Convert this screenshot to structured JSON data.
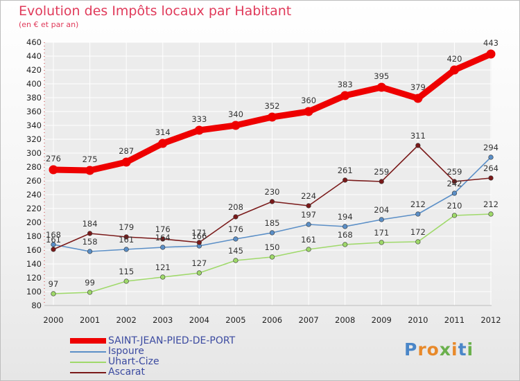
{
  "title": "Evolution des Impôts locaux par Habitant",
  "subtitle": "(en € et par an)",
  "logo": {
    "letters": [
      "P",
      "r",
      "o",
      "x",
      "i",
      "t",
      "i"
    ],
    "colors": [
      "#4a86c8",
      "#e8892a",
      "#e8892a",
      "#6ab04c",
      "#e8892a",
      "#4a86c8",
      "#6ab04c"
    ]
  },
  "chart_data": {
    "type": "line",
    "x": [
      "2000",
      "2001",
      "2002",
      "2003",
      "2004",
      "2005",
      "2006",
      "2007",
      "2008",
      "2009",
      "2010",
      "2011",
      "2012"
    ],
    "ylim": [
      80,
      460
    ],
    "yticks": [
      80,
      100,
      120,
      140,
      160,
      180,
      200,
      220,
      240,
      260,
      280,
      300,
      320,
      340,
      360,
      380,
      400,
      420,
      440,
      460
    ],
    "series": [
      {
        "name": "SAINT-JEAN-PIED-DE-PORT",
        "color": "#ee0000",
        "values": [
          276,
          275,
          287,
          314,
          333,
          340,
          352,
          360,
          383,
          395,
          379,
          420,
          443
        ]
      },
      {
        "name": "Ispoure",
        "color": "#5b8fc7",
        "values": [
          168,
          158,
          161,
          164,
          166,
          176,
          185,
          197,
          194,
          204,
          212,
          242,
          294
        ]
      },
      {
        "name": "Uhart-Cize",
        "color": "#9fd96a",
        "values": [
          97,
          99,
          115,
          121,
          127,
          145,
          150,
          161,
          168,
          171,
          172,
          210,
          212
        ]
      },
      {
        "name": "Ascarat",
        "color": "#7a1a1a",
        "values": [
          161,
          184,
          179,
          176,
          171,
          208,
          230,
          224,
          261,
          259,
          311,
          259,
          264
        ]
      }
    ],
    "labels": [
      [
        "276",
        "275",
        "287",
        "314",
        "333",
        "340",
        "352",
        "360",
        "383",
        "395",
        "379",
        "420",
        "443"
      ],
      [
        "168",
        "158",
        "161",
        "164",
        "166",
        "176",
        "185",
        "197",
        "194",
        "204",
        "212",
        "242",
        "294"
      ],
      [
        "97",
        "99",
        "115",
        "121",
        "127",
        "145",
        "150",
        "161",
        "168",
        "171",
        "172",
        "210",
        "212"
      ],
      [
        "161",
        "184",
        "179",
        "176",
        "171",
        "208",
        "230",
        "224",
        "261",
        "259",
        "311",
        "259",
        "264"
      ]
    ]
  }
}
